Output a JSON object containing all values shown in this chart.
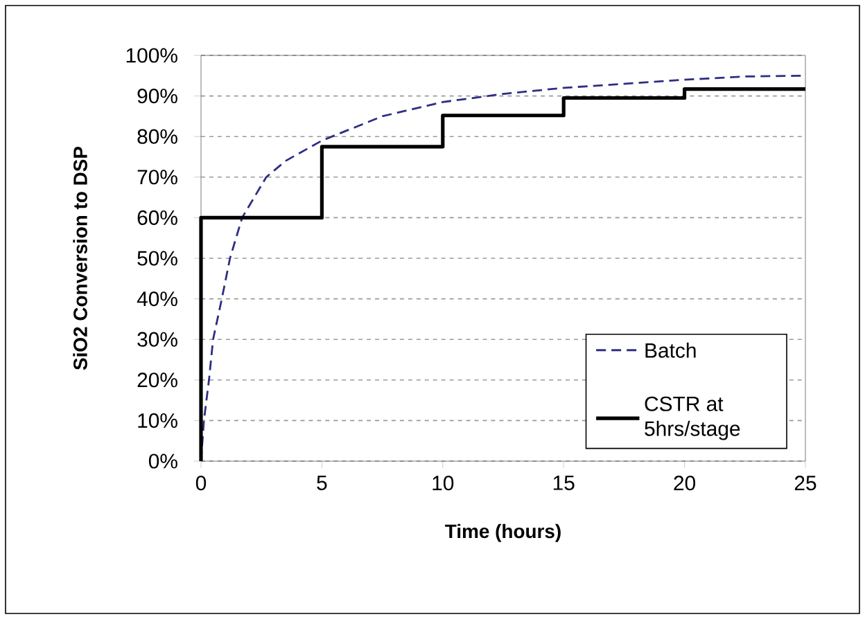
{
  "chart_data": {
    "type": "line",
    "xlabel": "Time (hours)",
    "ylabel": "SiO2 Conversion to DSP",
    "xlim": [
      0,
      25
    ],
    "xticks": [
      0,
      5,
      10,
      15,
      20,
      25
    ],
    "ylim": [
      0,
      100
    ],
    "yticks": [
      {
        "value": 0,
        "label": "0%"
      },
      {
        "value": 10,
        "label": "10%"
      },
      {
        "value": 20,
        "label": "20%"
      },
      {
        "value": 30,
        "label": "30%"
      },
      {
        "value": 40,
        "label": "40%"
      },
      {
        "value": 50,
        "label": "50%"
      },
      {
        "value": 60,
        "label": "60%"
      },
      {
        "value": 70,
        "label": "70%"
      },
      {
        "value": 80,
        "label": "80%"
      },
      {
        "value": 90,
        "label": "90%"
      },
      {
        "value": 100,
        "label": "100%"
      }
    ],
    "grid": "y",
    "legend": "bottom right",
    "marker": "none",
    "series": [
      {
        "name": "Batch",
        "line_style": "dashed",
        "color": "#2e2e82",
        "x": [
          0,
          0.12,
          0.33,
          0.5,
          0.86,
          1.2,
          1.7,
          2.7,
          3.5,
          5,
          7.5,
          10,
          12.5,
          15,
          17.5,
          20,
          22.5,
          25
        ],
        "values": [
          0,
          10,
          20,
          30,
          40,
          50,
          60,
          70,
          74,
          79,
          85,
          88.5,
          90.5,
          92,
          93,
          94,
          94.8,
          95
        ]
      },
      {
        "name": "CSTR at 5hrs/stage",
        "type": "step",
        "line_style": "solid",
        "color": "#000000",
        "x": [
          0,
          0,
          5,
          10,
          15,
          20,
          25
        ],
        "values": [
          0,
          60,
          77.5,
          85.2,
          89.5,
          91.7,
          91.7
        ]
      }
    ]
  }
}
